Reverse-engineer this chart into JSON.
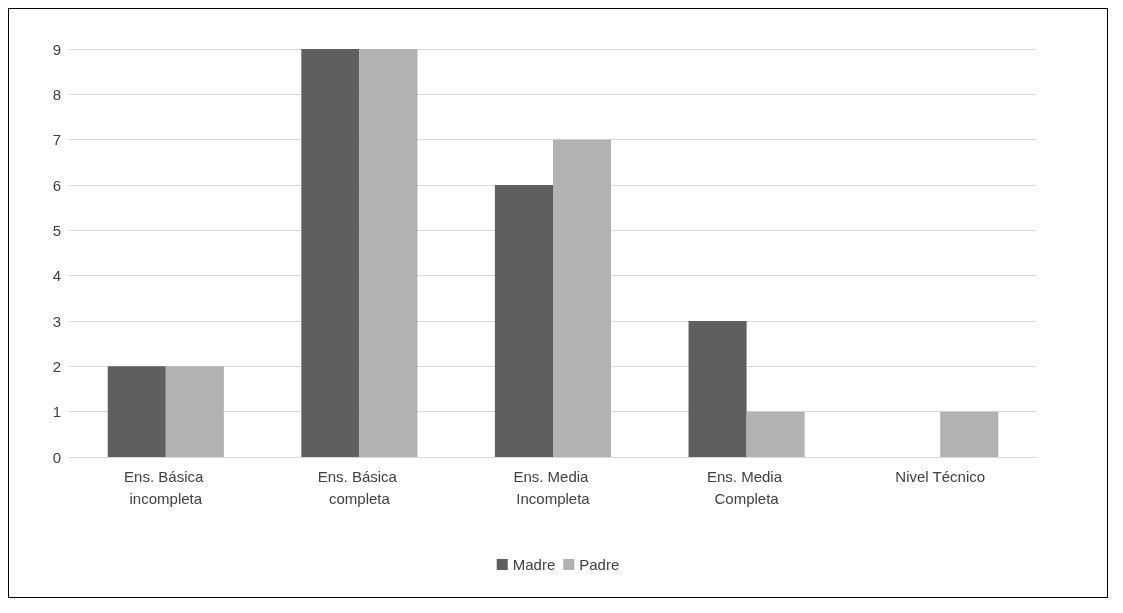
{
  "chart_data": {
    "type": "bar",
    "categories": [
      "Ens. Básica incompleta",
      "Ens. Básica completa",
      "Ens. Media Incompleta",
      "Ens. Media Completa",
      "Nivel Técnico"
    ],
    "series": [
      {
        "name": "Madre",
        "color": "#5f5f5f",
        "values": [
          2,
          9,
          6,
          3,
          0
        ]
      },
      {
        "name": "Padre",
        "color": "#b2b2b2",
        "values": [
          2,
          9,
          7,
          1,
          1
        ]
      }
    ],
    "ylim": [
      0,
      9
    ],
    "yticks": [
      0,
      1,
      2,
      3,
      4,
      5,
      6,
      7,
      8,
      9
    ],
    "grid": "y",
    "legend": "bottom"
  }
}
